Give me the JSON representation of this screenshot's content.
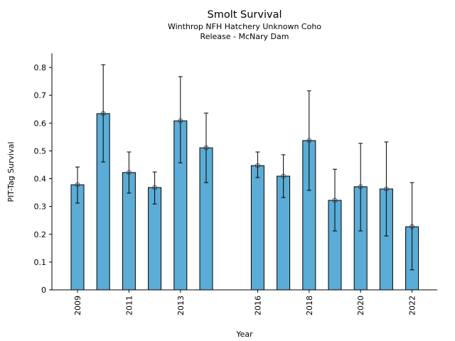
{
  "chart_data": {
    "type": "bar",
    "title": "Smolt Survival",
    "subtitle_lines": [
      "Winthrop NFH Hatchery Unknown Coho",
      "Release - McNary Dam"
    ],
    "xlabel": "Year",
    "ylabel": "PIT-Tag Survival",
    "ylim": [
      0,
      0.85
    ],
    "yticks": [
      0,
      0.1,
      0.2,
      0.3,
      0.4,
      0.5,
      0.6,
      0.7,
      0.8
    ],
    "ytick_labels": [
      "0",
      "0.1",
      "0.2",
      "0.3",
      "0.4",
      "0.5",
      "0.6",
      "0.7",
      "0.8"
    ],
    "xlim": [
      2007.75,
      2023.0
    ],
    "xticks": [
      2009,
      2011,
      2013,
      2016,
      2018,
      2020,
      2022
    ],
    "xtick_labels": [
      "2009",
      "2011",
      "2013",
      "2016",
      "2018",
      "2020",
      "2022"
    ],
    "bar_color": "#5bacd6",
    "categories": [
      2009,
      2010,
      2011,
      2012,
      2013,
      2014,
      2016,
      2017,
      2018,
      2019,
      2020,
      2021,
      2022
    ],
    "values": [
      0.378,
      0.634,
      0.422,
      0.368,
      0.608,
      0.511,
      0.447,
      0.409,
      0.537,
      0.322,
      0.371,
      0.363,
      0.227
    ],
    "error_upper": [
      0.442,
      0.81,
      0.496,
      0.424,
      0.767,
      0.636,
      0.496,
      0.486,
      0.716,
      0.434,
      0.527,
      0.532,
      0.386
    ],
    "error_lower": [
      0.312,
      0.46,
      0.348,
      0.309,
      0.457,
      0.386,
      0.404,
      0.332,
      0.358,
      0.212,
      0.212,
      0.194,
      0.072
    ],
    "grid": false,
    "legend": "none"
  }
}
